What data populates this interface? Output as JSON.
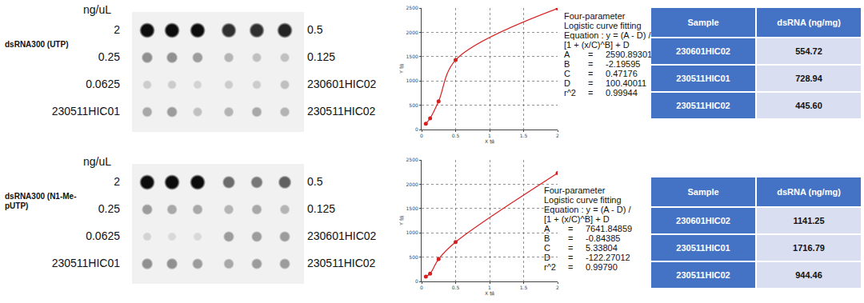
{
  "chart_data": [
    {
      "type": "scatter",
      "line_style": "spline",
      "marker": "circle",
      "color": "#d62020",
      "x": [
        0.0625,
        0.125,
        0.25,
        0.5,
        2
      ],
      "values": [
        120,
        230,
        580,
        1430,
        2490
      ],
      "xlim": [
        0,
        2
      ],
      "xticks": [
        0,
        0.5,
        1,
        1.5,
        2
      ],
      "ylim": [
        0,
        2500
      ],
      "yticks": [
        0,
        500,
        1000,
        1500,
        2000,
        2500
      ],
      "grid": true,
      "x_label": "X 轴",
      "y_label": "Y 轴"
    },
    {
      "type": "scatter",
      "line_style": "spline",
      "marker": "circle",
      "color": "#d62020",
      "x": [
        0.0625,
        0.125,
        0.25,
        0.5,
        2
      ],
      "values": [
        100,
        160,
        460,
        810,
        2230
      ],
      "xlim": [
        0,
        2
      ],
      "xticks": [
        0,
        0.5,
        1,
        1.5,
        2
      ],
      "ylim": [
        0,
        2500
      ],
      "yticks": [
        0,
        500,
        1000,
        1500,
        2000,
        2500
      ],
      "grid": true,
      "x_label": "X 轴",
      "y_label": "Y 轴"
    }
  ],
  "panels": [
    {
      "label": "dsRNA300 (UTP)",
      "unit": "ng/uL",
      "left_labels": [
        "2",
        "0.25",
        "0.0625",
        "230511HIC01"
      ],
      "right_labels": [
        "0.5",
        "0.125",
        "230601HIC02",
        "230511HIC02"
      ],
      "dot_signal": [
        [
          0.95,
          0.95,
          0.95,
          0.8,
          0.8,
          0.85
        ],
        [
          0.4,
          0.4,
          0.35,
          0.25,
          0.2,
          0.2
        ],
        [
          0.15,
          0.15,
          0.12,
          0.15,
          0.15,
          0.2
        ],
        [
          0.3,
          0.35,
          0.2,
          0.25,
          0.3,
          0.25
        ]
      ],
      "fit": {
        "title": [
          "Four-parameter",
          "Logistic curve fitting",
          "Equation : y = (A - D) /",
          "[1 + (x/C)^B] + D"
        ],
        "params": [
          [
            "A",
            "2590.89301"
          ],
          [
            "B",
            "-2.19595"
          ],
          [
            "C",
            "0.47176"
          ],
          [
            "D",
            "100.40011"
          ],
          [
            "r^2",
            "0.99944"
          ]
        ]
      },
      "table": {
        "header": [
          "Sample",
          "dsRNA (ng/mg)"
        ],
        "rows": [
          [
            "230601HIC02",
            "554.72"
          ],
          [
            "230511HIC01",
            "728.94"
          ],
          [
            "230511HIC02",
            "445.60"
          ]
        ]
      }
    },
    {
      "label": "dsRNA300 (N1-Me-pUTP)",
      "unit": "ng/uL",
      "left_labels": [
        "2",
        "0.25",
        "0.0625",
        "230511HIC01"
      ],
      "right_labels": [
        "0.5",
        "0.125",
        "230601HIC02",
        "230511HIC02"
      ],
      "dot_signal": [
        [
          0.95,
          0.95,
          0.95,
          0.55,
          0.5,
          0.6
        ],
        [
          0.35,
          0.3,
          0.3,
          0.25,
          0.3,
          0.25
        ],
        [
          0.12,
          0.1,
          0.1,
          0.35,
          0.35,
          0.35
        ],
        [
          0.4,
          0.4,
          0.35,
          0.3,
          0.35,
          0.35
        ]
      ],
      "fit": {
        "title": [
          "Four-parameter",
          "Logistic curve fitting",
          "Equation : y = (A - D) /",
          "[1 + (x/C)^B] + D"
        ],
        "params": [
          [
            "A",
            "7641.84859"
          ],
          [
            "B",
            "-0.84385"
          ],
          [
            "C",
            "5.33804"
          ],
          [
            "D",
            "-122.27012"
          ],
          [
            "r^2",
            "0.99790"
          ]
        ]
      },
      "table": {
        "header": [
          "Sample",
          "dsRNA (ng/mg)"
        ],
        "rows": [
          [
            "230601HIC02",
            "1141.25"
          ],
          [
            "230511HIC01",
            "1716.79"
          ],
          [
            "230511HIC02",
            "944.46"
          ]
        ]
      }
    }
  ]
}
